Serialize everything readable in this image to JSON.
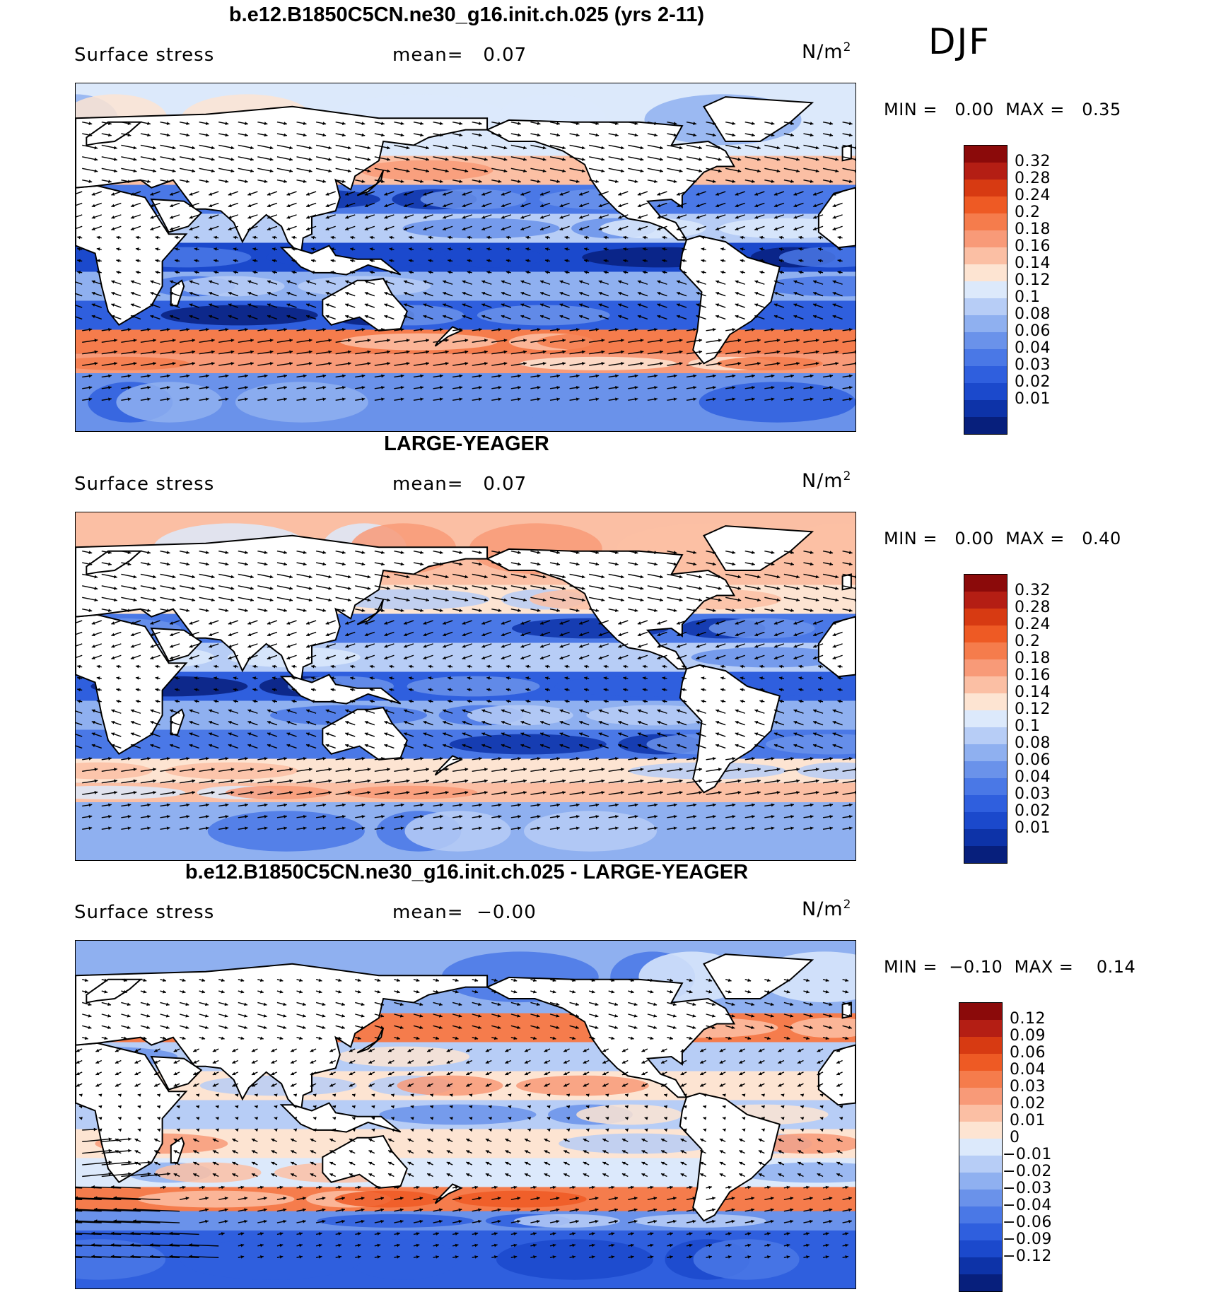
{
  "season": "DJF",
  "panels": [
    {
      "title": "b.e12.B1850C5CN.ne30_g16.init.ch.025 (yrs 2-11)",
      "variable": "Surface stress",
      "mean_label": "mean=",
      "mean_value": "0.07",
      "units": "N/m",
      "units_exp": "2",
      "min_label": "MIN =",
      "min_value": "0.00",
      "max_label": "MAX =",
      "max_value": "0.35",
      "colorbar_levels": [
        "0.32",
        "0.28",
        "0.24",
        "0.2",
        "0.18",
        "0.16",
        "0.14",
        "0.12",
        "0.1",
        "0.08",
        "0.06",
        "0.04",
        "0.03",
        "0.02",
        "0.01"
      ]
    },
    {
      "title": "LARGE-YEAGER",
      "variable": "Surface stress",
      "mean_label": "mean=",
      "mean_value": "0.07",
      "units": "N/m",
      "units_exp": "2",
      "min_label": "MIN =",
      "min_value": "0.00",
      "max_label": "MAX =",
      "max_value": "0.40",
      "colorbar_levels": [
        "0.32",
        "0.28",
        "0.24",
        "0.2",
        "0.18",
        "0.16",
        "0.14",
        "0.12",
        "0.1",
        "0.08",
        "0.06",
        "0.04",
        "0.03",
        "0.02",
        "0.01"
      ]
    },
    {
      "title": "b.e12.B1850C5CN.ne30_g16.init.ch.025 - LARGE-YEAGER",
      "variable": "Surface stress",
      "mean_label": "mean=",
      "mean_value": "−0.00",
      "units": "N/m",
      "units_exp": "2",
      "min_label": "MIN =",
      "min_value": "−0.10",
      "max_label": "MAX =",
      "max_value": "0.14",
      "colorbar_levels": [
        "0.12",
        "0.09",
        "0.06",
        "0.04",
        "0.03",
        "0.02",
        "0.01",
        "0",
        "−0.01",
        "−0.02",
        "−0.03",
        "−0.04",
        "−0.06",
        "−0.09",
        "−0.12"
      ]
    }
  ],
  "colors": {
    "seq_scale": [
      "#8b0a0a",
      "#b41e14",
      "#d73a12",
      "#ee5a24",
      "#f57c4c",
      "#f89a78",
      "#fbbfa4",
      "#fde4d2",
      "#dce9fb",
      "#b7cdf6",
      "#8fb0f0",
      "#6a92ea",
      "#4a78e6",
      "#2f5fde",
      "#1b49cc",
      "#0d33a8",
      "#071f7c"
    ],
    "div_scale": [
      "#8b0a0a",
      "#b41e14",
      "#d73a12",
      "#ee5a24",
      "#f57c4c",
      "#f89a78",
      "#fbbfa4",
      "#fde4d2",
      "#dce9fb",
      "#b7cdf6",
      "#8fb0f0",
      "#6a92ea",
      "#4a78e6",
      "#2f5fde",
      "#1b49cc",
      "#0d33a8",
      "#071f7c"
    ],
    "land": "#ffffff"
  },
  "chart_data": [
    {
      "type": "heatmap",
      "title": "b.e12.B1850C5CN.ne30_g16.init.ch.025 (yrs 2-11)",
      "subtitle": "Surface stress",
      "units": "N/m2",
      "season": "DJF",
      "mean": 0.07,
      "min": 0.0,
      "max": 0.35,
      "contour_levels": [
        0.01,
        0.02,
        0.03,
        0.04,
        0.06,
        0.08,
        0.1,
        0.12,
        0.14,
        0.16,
        0.18,
        0.2,
        0.24,
        0.28,
        0.32
      ],
      "overlay": "wind stress vectors",
      "zonal_bands": [
        {
          "lat": 60,
          "value": 0.12
        },
        {
          "lat": 45,
          "value": 0.16
        },
        {
          "lat": 30,
          "value": 0.04
        },
        {
          "lat": 15,
          "value": 0.1
        },
        {
          "lat": 0,
          "value": 0.02
        },
        {
          "lat": -15,
          "value": 0.08
        },
        {
          "lat": -30,
          "value": 0.03
        },
        {
          "lat": -45,
          "value": 0.2
        },
        {
          "lat": -55,
          "value": 0.18
        },
        {
          "lat": -65,
          "value": 0.06
        }
      ]
    },
    {
      "type": "heatmap",
      "title": "LARGE-YEAGER",
      "subtitle": "Surface stress",
      "units": "N/m2",
      "season": "DJF",
      "mean": 0.07,
      "min": 0.0,
      "max": 0.4,
      "contour_levels": [
        0.01,
        0.02,
        0.03,
        0.04,
        0.06,
        0.08,
        0.1,
        0.12,
        0.14,
        0.16,
        0.18,
        0.2,
        0.24,
        0.28,
        0.32
      ],
      "overlay": "wind stress vectors",
      "zonal_bands": [
        {
          "lat": 60,
          "value": 0.16
        },
        {
          "lat": 45,
          "value": 0.14
        },
        {
          "lat": 30,
          "value": 0.04
        },
        {
          "lat": 15,
          "value": 0.1
        },
        {
          "lat": 0,
          "value": 0.03
        },
        {
          "lat": -15,
          "value": 0.08
        },
        {
          "lat": -30,
          "value": 0.04
        },
        {
          "lat": -45,
          "value": 0.14
        },
        {
          "lat": -55,
          "value": 0.16
        },
        {
          "lat": -65,
          "value": 0.08
        }
      ]
    },
    {
      "type": "heatmap",
      "title": "b.e12.B1850C5CN.ne30_g16.init.ch.025 - LARGE-YEAGER",
      "subtitle": "Surface stress",
      "units": "N/m2",
      "season": "DJF",
      "mean": -0.0,
      "min": -0.1,
      "max": 0.14,
      "contour_levels": [
        -0.12,
        -0.09,
        -0.06,
        -0.04,
        -0.03,
        -0.02,
        -0.01,
        0,
        0.01,
        0.02,
        0.03,
        0.04,
        0.06,
        0.09,
        0.12
      ],
      "overlay": "wind stress difference vectors",
      "zonal_bands": [
        {
          "lat": 60,
          "value": -0.02
        },
        {
          "lat": 45,
          "value": 0.04
        },
        {
          "lat": 30,
          "value": -0.01
        },
        {
          "lat": 15,
          "value": 0.01
        },
        {
          "lat": 0,
          "value": -0.01
        },
        {
          "lat": -15,
          "value": 0.01
        },
        {
          "lat": -30,
          "value": 0.0
        },
        {
          "lat": -45,
          "value": 0.04
        },
        {
          "lat": -55,
          "value": -0.03
        },
        {
          "lat": -65,
          "value": -0.06
        }
      ]
    }
  ]
}
